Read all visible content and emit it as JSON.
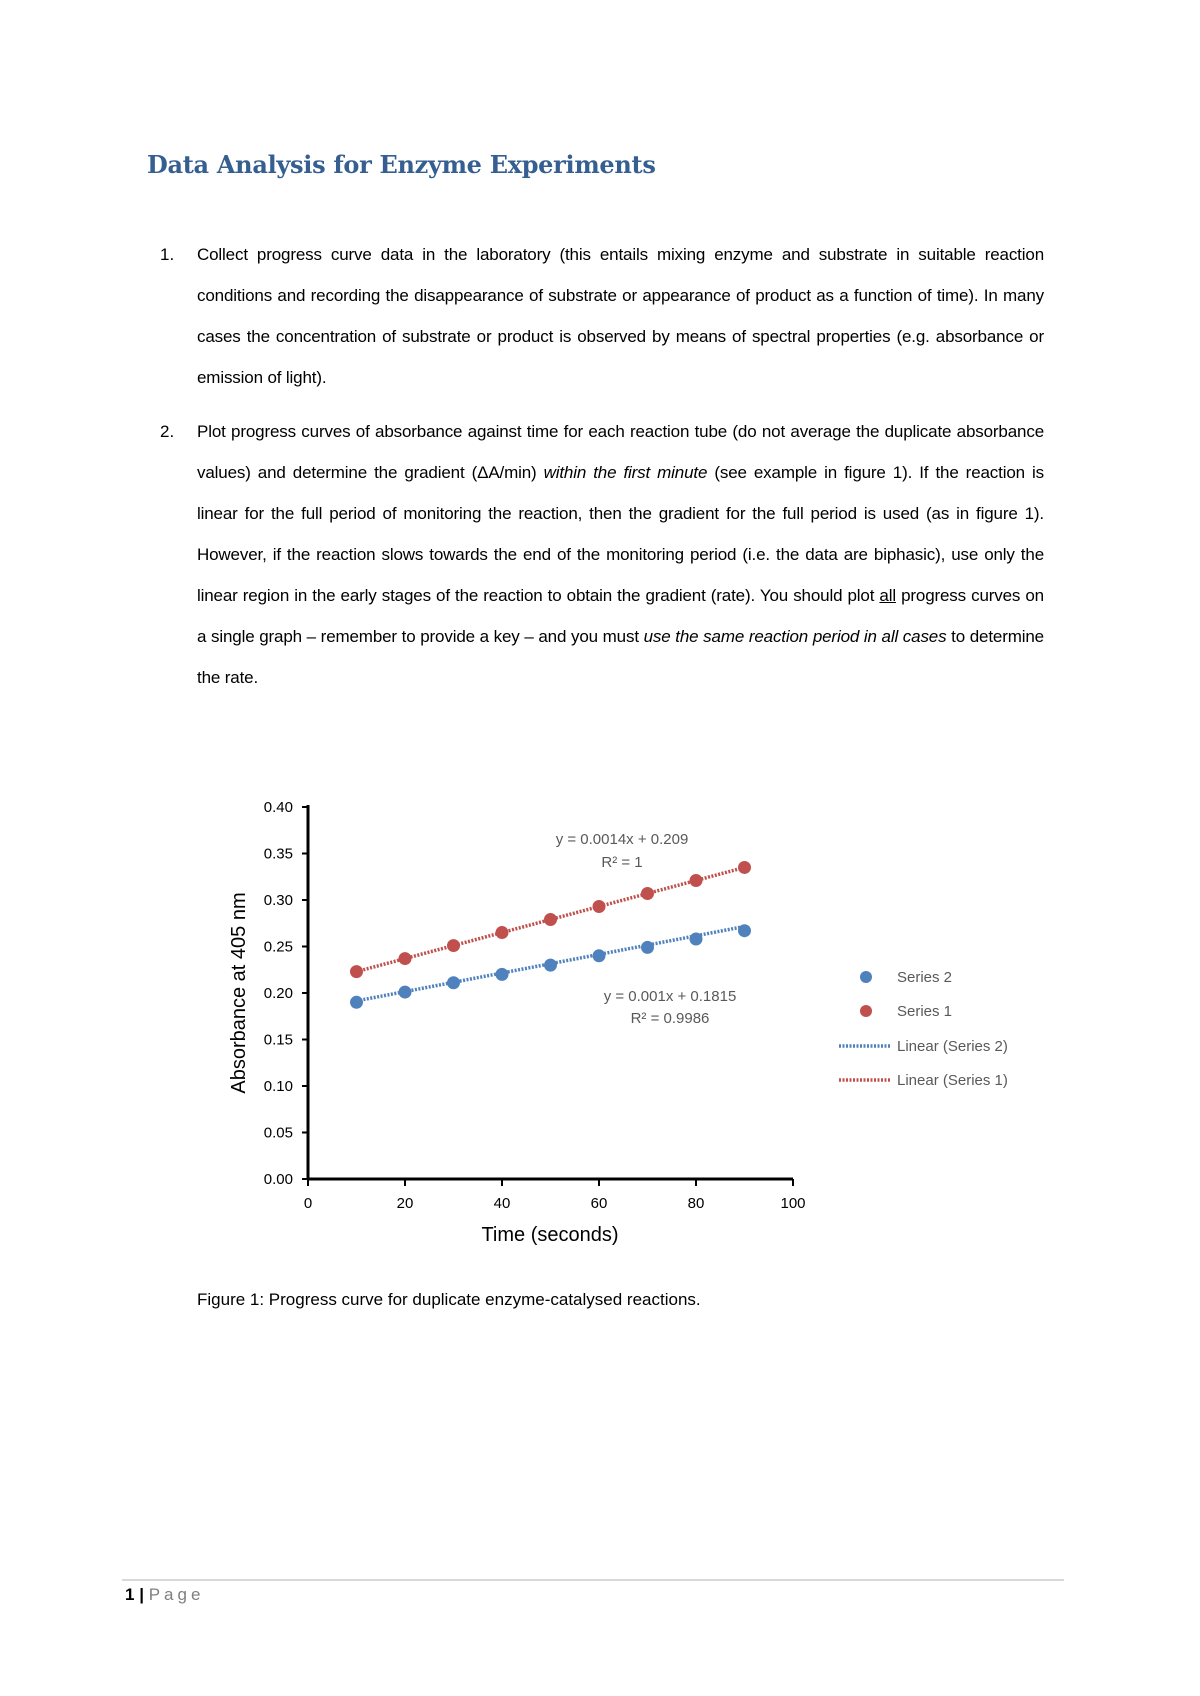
{
  "document": {
    "title": "Data Analysis for Enzyme Experiments",
    "items": [
      {
        "number": "1.",
        "segments": [
          {
            "text": "Collect progress curve data in the laboratory (this entails mixing enzyme and substrate in suitable reaction conditions and recording the disappearance of substrate or appearance of product as a function of time).  In many cases the concentration of substrate or product is observed by means of spectral properties (e.g. absorbance or emission of light).",
            "style": "normal"
          }
        ]
      },
      {
        "number": "2.",
        "segments": [
          {
            "text": "Plot progress curves of absorbance against time for each reaction tube (do not average the duplicate absorbance values) and determine the gradient (ΔA/min) ",
            "style": "normal"
          },
          {
            "text": "within the first minute",
            "style": "italic"
          },
          {
            "text": " (see example in figure 1).  If the reaction is linear for the full period of monitoring the reaction, then the gradient for the full period is used (as in figure 1).  However, if the reaction slows towards the end of the monitoring period (i.e. the data are biphasic), use only the linear region in the early stages of the reaction to obtain the gradient (rate).  You should plot ",
            "style": "normal"
          },
          {
            "text": "all",
            "style": "underline"
          },
          {
            "text": " progress curves on a single graph – remember to provide a key – and you must ",
            "style": "normal"
          },
          {
            "text": "use the same reaction period in all cases",
            "style": "italic"
          },
          {
            "text": " to determine the rate.",
            "style": "normal"
          }
        ]
      }
    ],
    "caption": "Figure 1: Progress curve for duplicate enzyme-catalysed reactions.",
    "footer": {
      "page_number": "1",
      "separator": "|",
      "page_label": "Page"
    }
  },
  "chart_data": {
    "type": "scatter",
    "xlabel": "Time (seconds)",
    "ylabel": "Absorbance at 405 nm",
    "xlim": [
      0,
      100
    ],
    "ylim": [
      0,
      0.4
    ],
    "xticks": [
      "0",
      "20",
      "40",
      "60",
      "80",
      "100"
    ],
    "yticks": [
      "0.00",
      "0.05",
      "0.10",
      "0.15",
      "0.20",
      "0.25",
      "0.30",
      "0.35",
      "0.40"
    ],
    "grid": false,
    "legend_position": "right",
    "series": [
      {
        "name": "Series 2",
        "color": "#4f81bd",
        "x": [
          10,
          20,
          30,
          40,
          50,
          60,
          70,
          80,
          90
        ],
        "y": [
          0.19,
          0.201,
          0.211,
          0.22,
          0.23,
          0.24,
          0.249,
          0.258,
          0.267
        ]
      },
      {
        "name": "Series 1",
        "color": "#c0504d",
        "x": [
          10,
          20,
          30,
          40,
          50,
          60,
          70,
          80,
          90
        ],
        "y": [
          0.223,
          0.237,
          0.251,
          0.265,
          0.279,
          0.293,
          0.307,
          0.321,
          0.335
        ]
      }
    ],
    "trendlines": [
      {
        "name": "Linear (Series 2)",
        "color": "#4f81bd",
        "slope": 0.001,
        "intercept": 0.1815,
        "equation": "y = 0.001x + 0.1815",
        "r2": "R² = 0.9986"
      },
      {
        "name": "Linear (Series 1)",
        "color": "#c0504d",
        "slope": 0.0014,
        "intercept": 0.209,
        "equation": "y = 0.0014x + 0.209",
        "r2": "R² = 1"
      }
    ]
  }
}
